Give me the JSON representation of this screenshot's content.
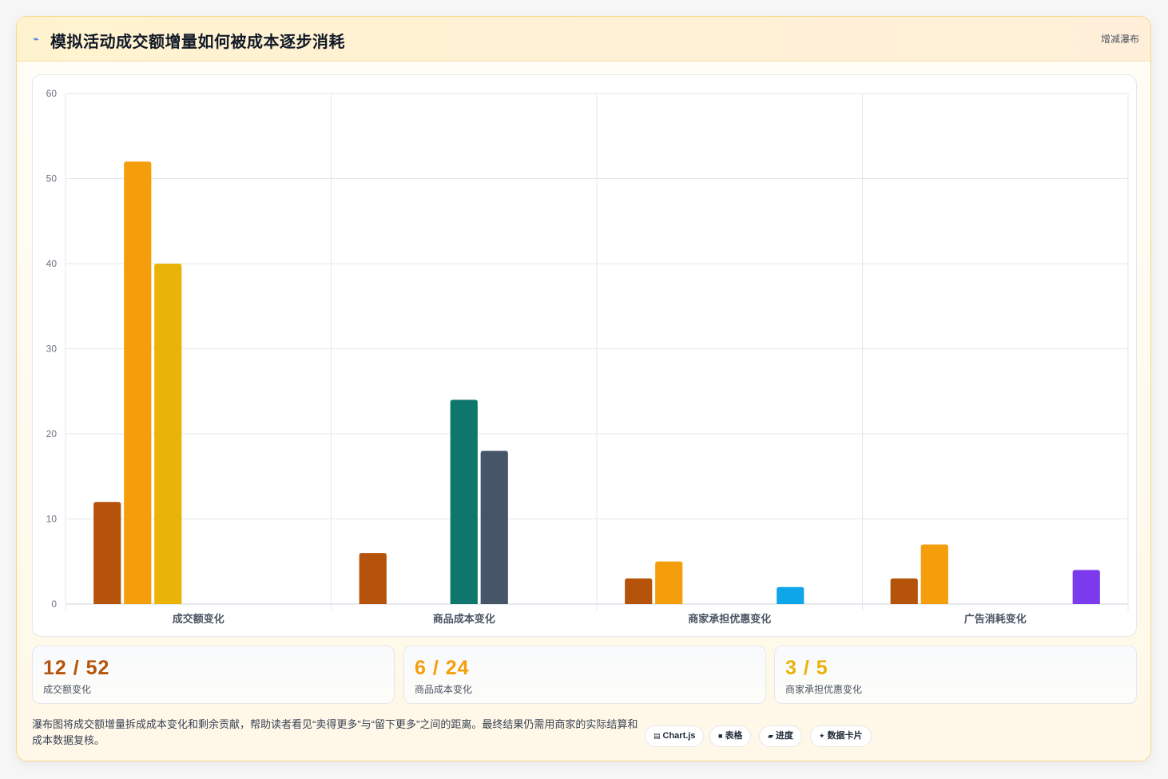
{
  "header": {
    "icon": "trend-icon",
    "title": "模拟活动成交额增量如何被成本逐步消耗",
    "tag": "增减瀑布"
  },
  "chart_data": {
    "type": "bar",
    "title": "",
    "xlabel": "",
    "ylabel": "",
    "ylim": [
      0,
      60
    ],
    "yticks": [
      0,
      10,
      20,
      30,
      40,
      50,
      60
    ],
    "grid": true,
    "categories": [
      "成交额变化",
      "商品成本变化",
      "商家承担优惠变化",
      "广告消耗变化"
    ],
    "series": [
      {
        "color": "#b45309",
        "values": [
          12,
          6,
          3,
          3
        ]
      },
      {
        "color": "#f59e0b",
        "values": [
          52,
          0,
          5,
          7
        ]
      },
      {
        "color": "#eab308",
        "values": [
          40,
          0,
          0,
          0
        ]
      },
      {
        "color": "#0f766e",
        "values": [
          0,
          24,
          0,
          0
        ]
      },
      {
        "color": "#475569",
        "values": [
          0,
          18,
          0,
          0
        ]
      },
      {
        "color": "#0ea5e9",
        "values": [
          0,
          0,
          2,
          0
        ]
      },
      {
        "color": "#7c3aed",
        "values": [
          0,
          0,
          0,
          4
        ]
      }
    ]
  },
  "stats": [
    {
      "value": "12 / 52",
      "label": "成交额变化",
      "color": "#b45309"
    },
    {
      "value": "6 / 24",
      "label": "商品成本变化",
      "color": "#f59e0b"
    },
    {
      "value": "3 / 5",
      "label": "商家承担优惠变化",
      "color": "#eab308"
    }
  ],
  "note": "瀑布图将成交额增量拆成成本变化和剩余贡献，帮助读者看见“卖得更多”与“留下更多”之间的距离。最终结果仍需用商家的实际结算和成本数据复核。",
  "chips": [
    {
      "icon": "▤",
      "label": "Chart.js"
    },
    {
      "icon": "■",
      "label": "表格"
    },
    {
      "icon": "▰",
      "label": "进度"
    },
    {
      "icon": "✦",
      "label": "数据卡片"
    }
  ]
}
